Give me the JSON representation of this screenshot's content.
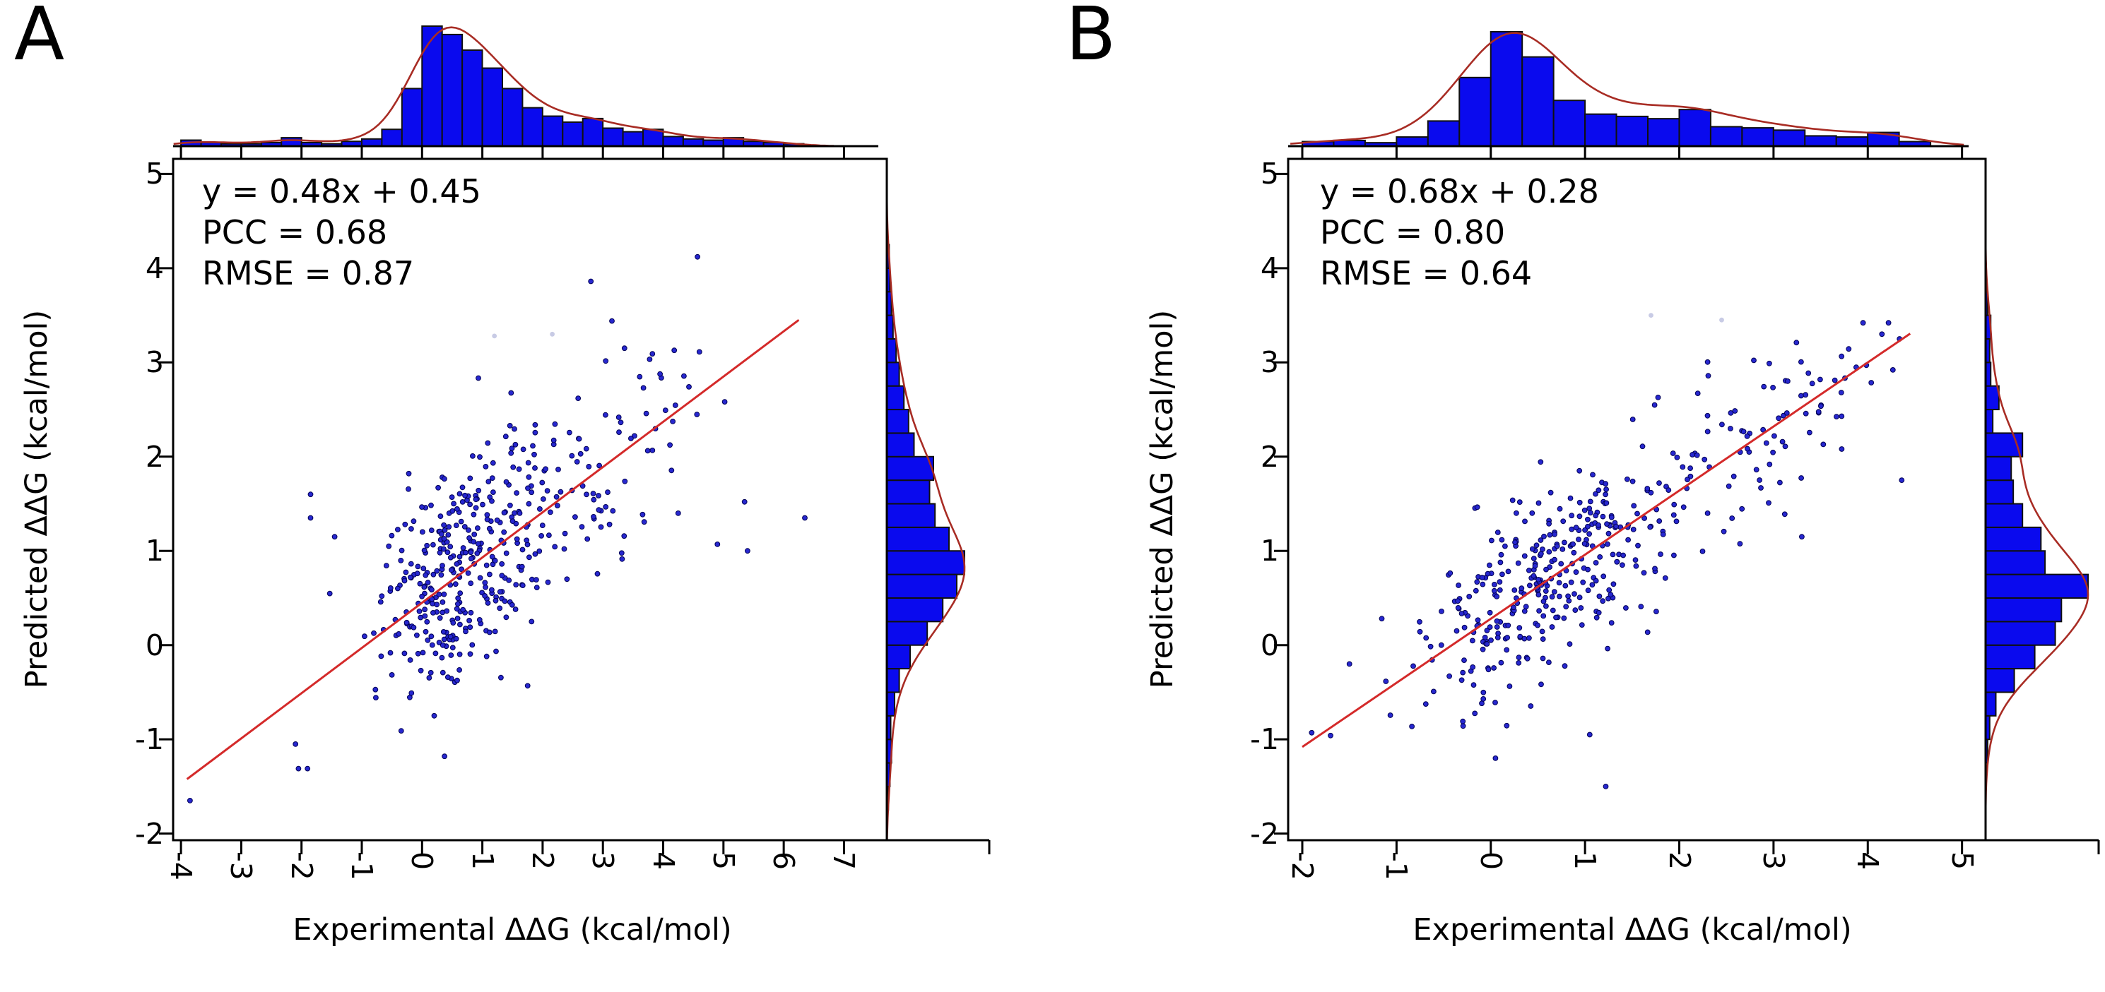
{
  "colors": {
    "background": "#ffffff",
    "text": "#000000",
    "axis": "#000000",
    "dot": "#2727cf",
    "dot_edge": "#000055",
    "faded_dot": "#9aa0cf",
    "hist_fill": "#0a0aee",
    "hist_edge": "#101010",
    "kde_line": "#a82c24",
    "fit_line": "#d42a2a"
  },
  "chart_data": [
    {
      "type": "scatter-with-marginal-histograms",
      "panel_label": "A",
      "annotation_lines": [
        "y = 0.48x + 0.45",
        "PCC = 0.68",
        "RMSE = 0.87"
      ],
      "equation": {
        "slope": 0.48,
        "intercept": 0.45
      },
      "pcc": 0.68,
      "rmse": 0.87,
      "xlabel": "Experimental ΔΔG (kcal/mol)",
      "ylabel": "Predicted ΔΔG (kcal/mol)",
      "xticks": [
        -4,
        -3,
        -2,
        -1,
        0,
        1,
        2,
        3,
        4,
        5,
        6,
        7
      ],
      "yticks": [
        5,
        4,
        3,
        2,
        1,
        0,
        -1,
        -2
      ],
      "xlim": [
        -4.13,
        7.71
      ],
      "ylim": [
        -2.07,
        5.16
      ],
      "grid": false,
      "legend": "none",
      "fit_line": {
        "x_start": -3.9,
        "x_end": 6.25
      },
      "scatter": {
        "n": 430,
        "seed": 11,
        "x_mixture": [
          {
            "w": 0.58,
            "mean": 0.55,
            "sd": 0.6
          },
          {
            "w": 0.3,
            "mean": 1.75,
            "sd": 0.95
          },
          {
            "w": 0.12,
            "mean": 3.2,
            "sd": 0.85
          }
        ],
        "x_range": [
          -2.3,
          5.05
        ],
        "noise_sd": 0.58,
        "y_range": [
          -1.55,
          3.25
        ],
        "extra_points": [
          [
            -3.85,
            -1.65
          ],
          [
            -2.1,
            -1.05
          ],
          [
            -2.05,
            -1.31
          ],
          [
            -1.9,
            -1.31
          ],
          [
            -1.85,
            1.6
          ],
          [
            -1.85,
            1.35
          ],
          [
            -1.45,
            1.15
          ],
          [
            6.35,
            1.35
          ],
          [
            5.35,
            1.52
          ],
          [
            5.4,
            1.0
          ],
          [
            4.9,
            1.07
          ],
          [
            4.57,
            4.12
          ],
          [
            2.8,
            3.86
          ],
          [
            3.15,
            3.44
          ],
          [
            4.25,
            1.4
          ]
        ],
        "faded_points": [
          [
            1.2,
            3.28
          ],
          [
            2.16,
            3.3
          ]
        ]
      },
      "top_hist": {
        "start": -4.0,
        "bin_width": 0.3333,
        "heights": [
          0.05,
          0.03,
          0.02,
          0.02,
          0.03,
          0.07,
          0.03,
          0.02,
          0.04,
          0.06,
          0.14,
          0.48,
          1.0,
          0.93,
          0.8,
          0.65,
          0.48,
          0.32,
          0.25,
          0.2,
          0.23,
          0.15,
          0.12,
          0.14,
          0.08,
          0.06,
          0.05,
          0.07,
          0.04,
          0.03,
          0.02
        ]
      },
      "right_hist": {
        "start": -1.75,
        "bin_width": 0.25,
        "heights": [
          0.02,
          0.04,
          0.06,
          0.05,
          0.1,
          0.16,
          0.3,
          0.52,
          0.72,
          0.9,
          1.0,
          0.8,
          0.62,
          0.55,
          0.6,
          0.35,
          0.28,
          0.22,
          0.16,
          0.12,
          0.08,
          0.06,
          0.04,
          0.03
        ]
      }
    },
    {
      "type": "scatter-with-marginal-histograms",
      "panel_label": "B",
      "annotation_lines": [
        "y = 0.68x + 0.28",
        "PCC = 0.80",
        "RMSE = 0.64"
      ],
      "equation": {
        "slope": 0.68,
        "intercept": 0.28
      },
      "pcc": 0.8,
      "rmse": 0.64,
      "xlabel": "Experimental ΔΔG (kcal/mol)",
      "ylabel": "Predicted ΔΔG (kcal/mol)",
      "xticks": [
        -2,
        -1,
        0,
        1,
        2,
        3,
        4,
        5
      ],
      "yticks": [
        5,
        4,
        3,
        2,
        1,
        0,
        -1,
        -2
      ],
      "xlim": [
        -2.15,
        5.25
      ],
      "ylim": [
        -2.07,
        5.16
      ],
      "grid": false,
      "legend": "none",
      "fit_line": {
        "x_start": -2.0,
        "x_end": 4.45
      },
      "scatter": {
        "n": 430,
        "seed": 23,
        "x_mixture": [
          {
            "w": 0.6,
            "mean": 0.42,
            "sd": 0.55
          },
          {
            "w": 0.3,
            "mean": 1.6,
            "sd": 0.85
          },
          {
            "w": 0.1,
            "mean": 3.1,
            "sd": 0.7
          }
        ],
        "x_range": [
          -1.92,
          4.38
        ],
        "noise_sd": 0.45,
        "y_range": [
          -1.12,
          3.45
        ],
        "extra_points": [
          [
            -1.9,
            -0.93
          ],
          [
            -1.7,
            -0.96
          ],
          [
            -1.5,
            -0.2
          ],
          [
            1.22,
            -1.5
          ],
          [
            0.05,
            -1.2
          ],
          [
            4.36,
            1.75
          ],
          [
            3.95,
            3.42
          ],
          [
            4.15,
            3.3
          ],
          [
            4.22,
            3.42
          ],
          [
            1.05,
            -0.95
          ],
          [
            3.3,
            1.15
          ]
        ],
        "faded_points": [
          [
            1.7,
            3.5
          ],
          [
            2.45,
            3.45
          ]
        ]
      },
      "top_hist": {
        "start": -2.0,
        "bin_width": 0.3333,
        "heights": [
          0.04,
          0.05,
          0.03,
          0.08,
          0.22,
          0.6,
          1.0,
          0.78,
          0.4,
          0.28,
          0.26,
          0.24,
          0.32,
          0.17,
          0.16,
          0.14,
          0.09,
          0.08,
          0.12,
          0.04,
          0.0
        ]
      },
      "right_hist": {
        "start": -1.25,
        "bin_width": 0.25,
        "heights": [
          0.02,
          0.04,
          0.1,
          0.28,
          0.48,
          0.68,
          0.74,
          1.0,
          0.58,
          0.54,
          0.36,
          0.27,
          0.25,
          0.36,
          0.07,
          0.13,
          0.05,
          0.04,
          0.05,
          0.02
        ]
      }
    }
  ]
}
